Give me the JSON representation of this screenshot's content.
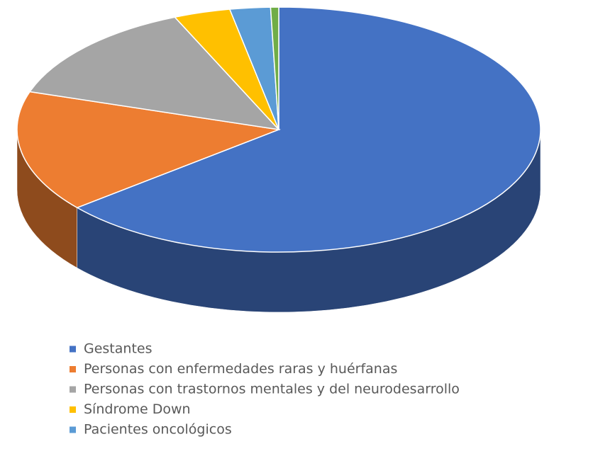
{
  "chart_data": {
    "type": "pie3d",
    "categories": [
      "Gestantes",
      "Personas con enfermedades raras y huérfanas",
      "Personas con trastornos mentales y del neurodesarrollo",
      "Síndrome Down",
      "Pacientes oncológicos",
      null
    ],
    "values": [
      64,
      16,
      13.5,
      3.5,
      2.5,
      0.5
    ],
    "colors": [
      "#4472c4",
      "#ed7d31",
      "#a5a5a5",
      "#ffc000",
      "#5b9bd5",
      "#70ad47"
    ],
    "legend": "bottom"
  }
}
